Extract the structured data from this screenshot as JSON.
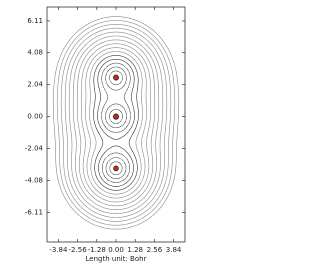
{
  "chart_data": {
    "type": "contour",
    "xlabel": "Length unit: Bohr",
    "x": [
      0,
      0,
      0
    ],
    "y": [
      2.5,
      0,
      -3.3
    ],
    "color": "#d62020",
    "xlim": [
      -4.6,
      4.6
    ],
    "ylim": [
      -8,
      7
    ],
    "xticks": [
      -3.84,
      -2.56,
      -1.28,
      {
        "value": 0,
        "label": "0.00"
      },
      1.28,
      2.56,
      3.84
    ],
    "yticks": [
      -6.11,
      -4.08,
      -2.04,
      {
        "value": 0,
        "label": "0.00"
      },
      2.04,
      4.08,
      6.11
    ]
  }
}
